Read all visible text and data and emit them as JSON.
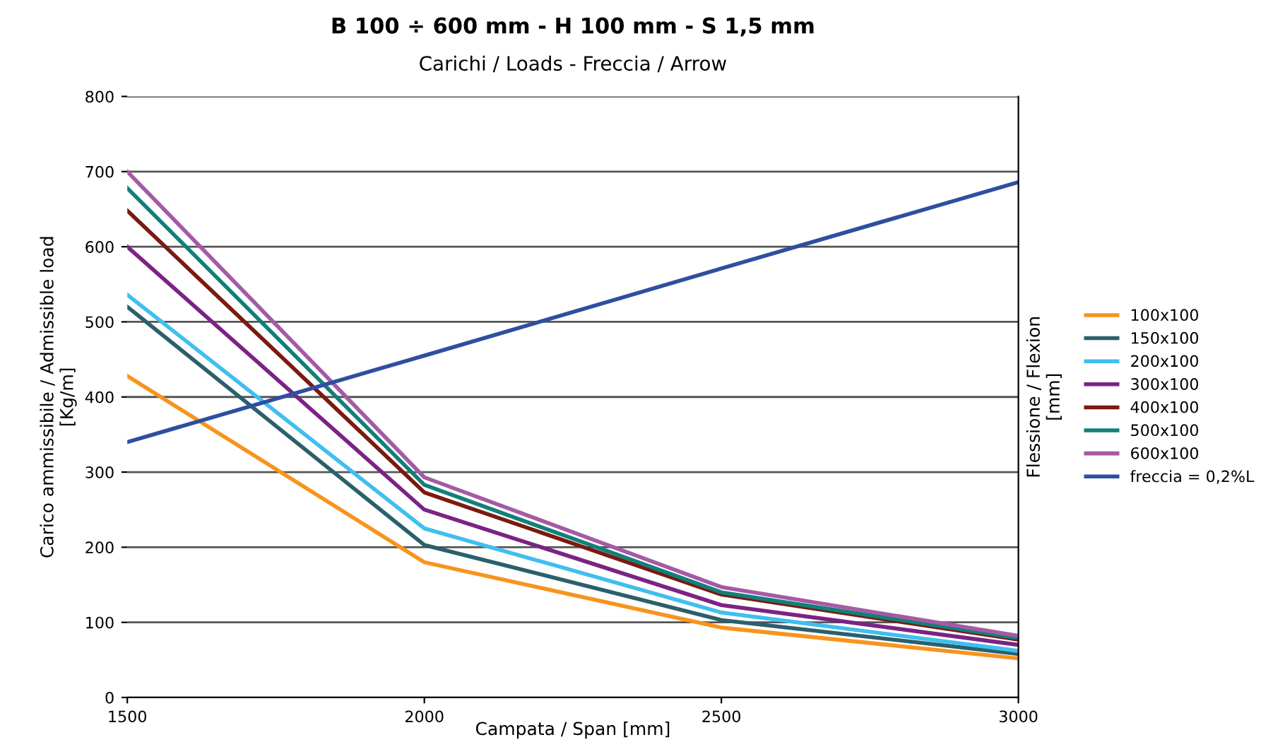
{
  "chart_data": {
    "type": "line",
    "title": "B 100 ÷ 600 mm - H 100 mm - S 1,5 mm",
    "subtitle": "Carichi / Loads - Freccia / Arrow",
    "xlabel": "Campata / Span [mm]",
    "ylabel": "Carico ammissibile / Admissible load\n[Kg/m]",
    "y2label": "Flessione / Flexion\n[mm]",
    "x": [
      1500,
      2000,
      2500,
      3000
    ],
    "xlim": [
      1500,
      3000
    ],
    "xticks": [
      1500,
      2000,
      2500,
      3000
    ],
    "ylim": [
      0,
      800
    ],
    "yticks": [
      0,
      100,
      200,
      300,
      400,
      500,
      600,
      700,
      800
    ],
    "grid": "y",
    "legend": "right",
    "marker": "none",
    "line_style": "solid",
    "series": [
      {
        "name": "100x100",
        "color": "#f7941d",
        "values": [
          428,
          180,
          93,
          52
        ]
      },
      {
        "name": "150x100",
        "color": "#2b5f6b",
        "values": [
          520,
          203,
          103,
          58
        ]
      },
      {
        "name": "200x100",
        "color": "#3fbfef",
        "values": [
          536,
          225,
          113,
          62
        ]
      },
      {
        "name": "300x100",
        "color": "#7b2385",
        "values": [
          600,
          250,
          123,
          70
        ]
      },
      {
        "name": "400x100",
        "color": "#7a1a10",
        "values": [
          648,
          273,
          137,
          77
        ]
      },
      {
        "name": "500x100",
        "color": "#12807a",
        "values": [
          678,
          283,
          140,
          79
        ]
      },
      {
        "name": "600x100",
        "color": "#a55aa5",
        "values": [
          700,
          293,
          147,
          82
        ]
      },
      {
        "name": "freccia = 0,2%L",
        "color": "#2e4fa0",
        "values": [
          340,
          455,
          571,
          686
        ]
      }
    ]
  }
}
